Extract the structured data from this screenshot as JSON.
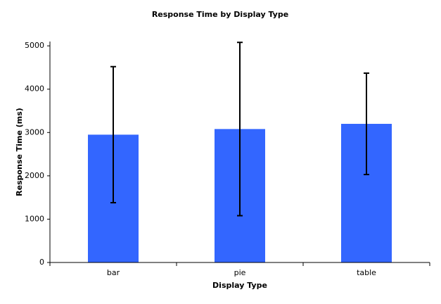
{
  "chart_data": {
    "type": "bar",
    "title": "Response Time by Display Type",
    "x_label": "Display Type",
    "y_label": "Response Time (ms)",
    "categories": [
      "bar",
      "pie",
      "table"
    ],
    "values": [
      2950,
      3080,
      3200
    ],
    "errors": [
      1570,
      2000,
      1170
    ],
    "color": "#3366ff",
    "ylim": [
      0,
      5100
    ],
    "yticks": [
      0,
      1000,
      2000,
      3000,
      4000,
      5000
    ]
  }
}
